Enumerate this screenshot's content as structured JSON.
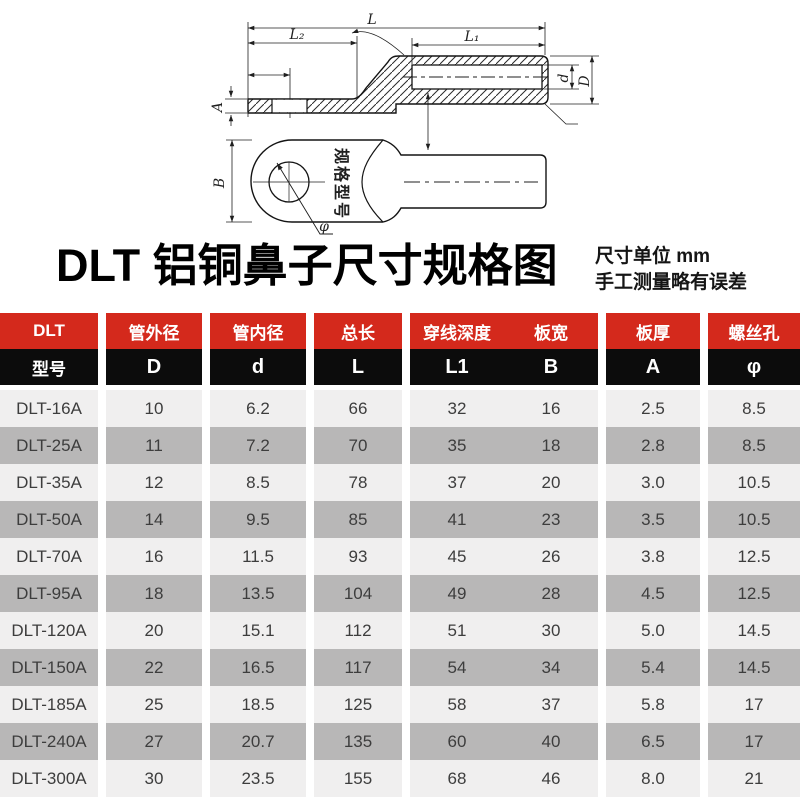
{
  "title": {
    "text": "DLT 铝铜鼻子尺寸规格图",
    "unit_note": "尺寸单位 mm",
    "accuracy_note": "手工测量略有误差"
  },
  "diagram": {
    "labels": {
      "L": "L",
      "L2": "L₂",
      "L1": "L₁",
      "A": "A",
      "d": "d",
      "D": "D",
      "B": "B",
      "phi": "φ",
      "stamp": "规格型号"
    }
  },
  "table": {
    "header_top": {
      "col1": "DLT",
      "col2": "管外径",
      "col3": "管内径",
      "col4": "总长",
      "col5a": "穿线深度",
      "col5b": "板宽",
      "col6": "板厚",
      "col7": "螺丝孔"
    },
    "header_bottom": {
      "col1": "型号",
      "col2": "D",
      "col3": "d",
      "col4": "L",
      "col5a": "L1",
      "col5b": "B",
      "col6": "A",
      "col7": "φ"
    },
    "rows": [
      {
        "model": "DLT-16A",
        "D": "10",
        "d": "6.2",
        "L": "66",
        "L1": "32",
        "B": "16",
        "A": "2.5",
        "phi": "8.5"
      },
      {
        "model": "DLT-25A",
        "D": "11",
        "d": "7.2",
        "L": "70",
        "L1": "35",
        "B": "18",
        "A": "2.8",
        "phi": "8.5"
      },
      {
        "model": "DLT-35A",
        "D": "12",
        "d": "8.5",
        "L": "78",
        "L1": "37",
        "B": "20",
        "A": "3.0",
        "phi": "10.5"
      },
      {
        "model": "DLT-50A",
        "D": "14",
        "d": "9.5",
        "L": "85",
        "L1": "41",
        "B": "23",
        "A": "3.5",
        "phi": "10.5"
      },
      {
        "model": "DLT-70A",
        "D": "16",
        "d": "11.5",
        "L": "93",
        "L1": "45",
        "B": "26",
        "A": "3.8",
        "phi": "12.5"
      },
      {
        "model": "DLT-95A",
        "D": "18",
        "d": "13.5",
        "L": "104",
        "L1": "49",
        "B": "28",
        "A": "4.5",
        "phi": "12.5"
      },
      {
        "model": "DLT-120A",
        "D": "20",
        "d": "15.1",
        "L": "112",
        "L1": "51",
        "B": "30",
        "A": "5.0",
        "phi": "14.5"
      },
      {
        "model": "DLT-150A",
        "D": "22",
        "d": "16.5",
        "L": "117",
        "L1": "54",
        "B": "34",
        "A": "5.4",
        "phi": "14.5"
      },
      {
        "model": "DLT-185A",
        "D": "25",
        "d": "18.5",
        "L": "125",
        "L1": "58",
        "B": "37",
        "A": "5.8",
        "phi": "17"
      },
      {
        "model": "DLT-240A",
        "D": "27",
        "d": "20.7",
        "L": "135",
        "L1": "60",
        "B": "40",
        "A": "6.5",
        "phi": "17"
      },
      {
        "model": "DLT-300A",
        "D": "30",
        "d": "23.5",
        "L": "155",
        "L1": "68",
        "B": "46",
        "A": "8.0",
        "phi": "21"
      }
    ]
  },
  "colors": {
    "header_red": "#d4291c",
    "header_black": "#0c0c0c",
    "row_light": "#f0efef",
    "row_dark": "#b8b7b7",
    "line": "#1f1f1f"
  }
}
